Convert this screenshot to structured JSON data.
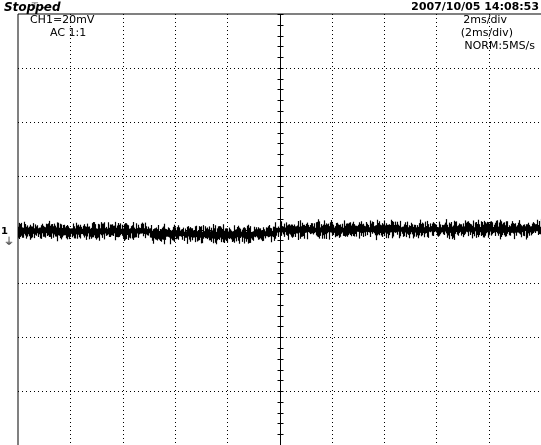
{
  "header": {
    "status": "Stopped",
    "datetime": "2007/10/05  14:08:53"
  },
  "channel": {
    "scale": "CH1=20mV",
    "coupling": "AC  1:1",
    "marker": "1"
  },
  "timebase": {
    "line1": "2ms/div",
    "line2": "(2ms/div)",
    "line3": "NORM:5MS/s"
  },
  "icons": {
    "trigger": "trigger-marker-icon",
    "ground": "ground-icon"
  },
  "grid": {
    "divisions_x": 10,
    "divisions_y": 8
  },
  "colors": {
    "background": "#ffffff",
    "trace": "#000000",
    "grid": "#000000"
  }
}
